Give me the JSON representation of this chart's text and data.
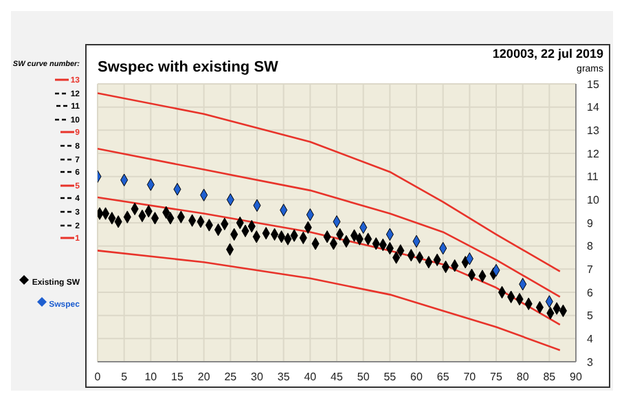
{
  "chart_data": {
    "type": "line",
    "title": "Swspec with existing SW",
    "subtitle": "120003, 22 jul 2019",
    "ylabel": "grams",
    "legend_title": "SW curve number:",
    "legend": "left",
    "grid": true,
    "xlim": [
      0,
      90
    ],
    "ylim": [
      3,
      15
    ],
    "xticks": [
      0,
      5,
      10,
      15,
      20,
      25,
      30,
      35,
      40,
      45,
      50,
      55,
      60,
      65,
      70,
      75,
      80,
      85,
      90
    ],
    "yticks": [
      3,
      4,
      5,
      6,
      7,
      8,
      9,
      10,
      11,
      12,
      13,
      14,
      15
    ],
    "series": [
      {
        "name": "13",
        "color": "#e8332a",
        "line_style": "solid",
        "marker": "none",
        "x": [
          0,
          20,
          40,
          55,
          65,
          75,
          87
        ],
        "values": [
          14.6,
          13.7,
          12.5,
          11.2,
          9.9,
          8.5,
          6.9
        ]
      },
      {
        "name": "12",
        "color": "#000000",
        "line_style": "dashed",
        "marker": "none"
      },
      {
        "name": "11",
        "color": "#000000",
        "line_style": "dashed",
        "marker": "none"
      },
      {
        "name": "10",
        "color": "#000000",
        "line_style": "dashed",
        "marker": "none"
      },
      {
        "name": "9",
        "color": "#e8332a",
        "line_style": "solid",
        "marker": "none",
        "x": [
          0,
          20,
          40,
          55,
          65,
          75,
          87
        ],
        "values": [
          12.2,
          11.3,
          10.4,
          9.4,
          8.6,
          7.4,
          5.8
        ]
      },
      {
        "name": "8",
        "color": "#000000",
        "line_style": "dashed",
        "marker": "none"
      },
      {
        "name": "7",
        "color": "#000000",
        "line_style": "dashed",
        "marker": "none"
      },
      {
        "name": "6",
        "color": "#000000",
        "line_style": "dashed",
        "marker": "none"
      },
      {
        "name": "5",
        "color": "#e8332a",
        "line_style": "solid",
        "marker": "none",
        "x": [
          0,
          20,
          40,
          55,
          65,
          75,
          87
        ],
        "values": [
          10.1,
          9.4,
          8.6,
          7.8,
          7.2,
          6.2,
          4.6
        ]
      },
      {
        "name": "4",
        "color": "#000000",
        "line_style": "dashed",
        "marker": "none"
      },
      {
        "name": "3",
        "color": "#000000",
        "line_style": "dashed",
        "marker": "none"
      },
      {
        "name": "2",
        "color": "#000000",
        "line_style": "dashed",
        "marker": "none"
      },
      {
        "name": "1",
        "color": "#e8332a",
        "line_style": "solid",
        "marker": "none",
        "x": [
          0,
          20,
          40,
          55,
          65,
          75,
          87
        ],
        "values": [
          7.8,
          7.3,
          6.6,
          5.9,
          5.2,
          4.5,
          3.5
        ]
      },
      {
        "name": "Existing SW",
        "type": "scatter",
        "color": "#000000",
        "marker": "diamond",
        "x": [
          0.4,
          1.5,
          2.7,
          3.9,
          5.6,
          7,
          8.4,
          9.6,
          10.8,
          12.9,
          13.7,
          15.7,
          17.8,
          19.4,
          21,
          22.7,
          23.9,
          24.9,
          25.7,
          26.8,
          27.8,
          29,
          29.9,
          31.7,
          33.3,
          34.6,
          35.8,
          37,
          38.7,
          39.6,
          41,
          43.2,
          44.4,
          45.6,
          46.8,
          48.3,
          49.3,
          50.9,
          52.4,
          53.7,
          55,
          56.2,
          57,
          59,
          60.6,
          62.3,
          63.9,
          65.5,
          67.2,
          69.2,
          70.4,
          72.4,
          74.5,
          76.1,
          77.8,
          79.4,
          81.1,
          83.2,
          85.2,
          86.4,
          87.6
        ],
        "values": [
          9.4,
          9.4,
          9.2,
          9.05,
          9.25,
          9.6,
          9.3,
          9.5,
          9.2,
          9.45,
          9.2,
          9.25,
          9.1,
          9.05,
          8.9,
          8.7,
          8.95,
          7.85,
          8.5,
          9,
          8.65,
          8.85,
          8.4,
          8.55,
          8.5,
          8.4,
          8.3,
          8.45,
          8.35,
          8.8,
          8.1,
          8.4,
          8.1,
          8.5,
          8.2,
          8.45,
          8.3,
          8.3,
          8.1,
          8.05,
          7.9,
          7.5,
          7.8,
          7.6,
          7.5,
          7.3,
          7.4,
          7.1,
          7.15,
          7.3,
          6.75,
          6.7,
          6.8,
          6,
          5.8,
          5.7,
          5.5,
          5.35,
          5.1,
          5.3,
          5.2
        ]
      },
      {
        "name": "Swspec",
        "type": "scatter",
        "color": "#1f5fd0",
        "marker": "diamond",
        "x": [
          0,
          5,
          10,
          15,
          20,
          25,
          30,
          35,
          40,
          45,
          50,
          55,
          60,
          65,
          70,
          75,
          80,
          85
        ],
        "values": [
          11,
          10.85,
          10.65,
          10.45,
          10.2,
          10,
          9.75,
          9.55,
          9.35,
          9.05,
          8.8,
          8.5,
          8.2,
          7.9,
          7.45,
          6.95,
          6.35,
          5.6
        ]
      }
    ]
  }
}
